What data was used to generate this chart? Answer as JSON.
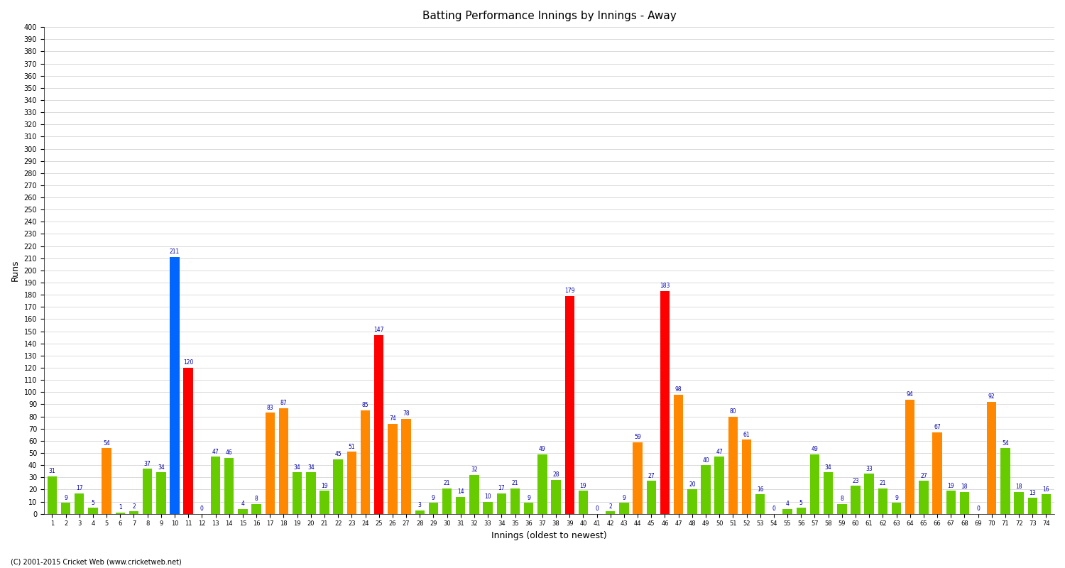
{
  "title": "Batting Performance Innings by Innings - Away",
  "xlabel": "Innings (oldest to newest)",
  "ylabel": "Runs",
  "ylim": [
    0,
    400
  ],
  "copyright": "(C) 2001-2015 Cricket Web (www.cricketweb.net)",
  "innings": [
    1,
    2,
    3,
    4,
    5,
    6,
    7,
    8,
    9,
    10,
    11,
    12,
    13,
    14,
    15,
    16,
    17,
    18,
    19,
    20,
    21,
    22,
    23,
    24,
    25,
    26,
    27,
    28,
    29,
    30,
    31,
    32,
    33,
    34,
    35,
    36,
    37,
    38,
    39,
    40,
    41,
    42,
    43,
    44,
    45,
    46,
    47,
    48,
    49,
    50,
    51,
    52,
    53,
    54,
    55,
    56,
    57,
    58,
    59,
    60,
    61,
    62,
    63,
    64,
    65,
    66,
    67,
    68,
    69,
    70,
    71,
    72,
    73,
    74
  ],
  "values": [
    31,
    9,
    17,
    5,
    54,
    1,
    2,
    37,
    34,
    211,
    120,
    0,
    47,
    46,
    4,
    8,
    83,
    87,
    34,
    34,
    19,
    45,
    51,
    85,
    147,
    74,
    78,
    3,
    9,
    21,
    14,
    32,
    10,
    17,
    21,
    9,
    49,
    28,
    179,
    19,
    0,
    2,
    9,
    59,
    27,
    183,
    98,
    20,
    40,
    47,
    80,
    61,
    16,
    0,
    4,
    5,
    49,
    34,
    8,
    23,
    33,
    21,
    9,
    94,
    27,
    67,
    19,
    18,
    0,
    92,
    54,
    18,
    13,
    16
  ],
  "colors": [
    "green",
    "green",
    "green",
    "green",
    "orange",
    "green",
    "green",
    "green",
    "green",
    "blue",
    "red",
    "green",
    "green",
    "green",
    "green",
    "green",
    "orange",
    "orange",
    "green",
    "green",
    "green",
    "green",
    "orange",
    "orange",
    "red",
    "orange",
    "orange",
    "green",
    "green",
    "green",
    "green",
    "green",
    "green",
    "green",
    "green",
    "green",
    "green",
    "green",
    "red",
    "green",
    "green",
    "green",
    "green",
    "orange",
    "green",
    "red",
    "orange",
    "green",
    "green",
    "green",
    "orange",
    "orange",
    "green",
    "green",
    "green",
    "green",
    "green",
    "green",
    "green",
    "green",
    "green",
    "green",
    "green",
    "orange",
    "green",
    "orange",
    "green",
    "green",
    "green",
    "orange",
    "green",
    "green",
    "green",
    "green"
  ],
  "bar_color_map": {
    "green": "#66cc00",
    "orange": "#ff8800",
    "blue": "#0066ff",
    "red": "#ff0000"
  },
  "figsize": [
    15.0,
    8.0
  ],
  "dpi": 100,
  "label_fontsize": 5.5,
  "label_color": "#0000aa",
  "bg_color": "#ffffff",
  "grid_color": "#cccccc"
}
